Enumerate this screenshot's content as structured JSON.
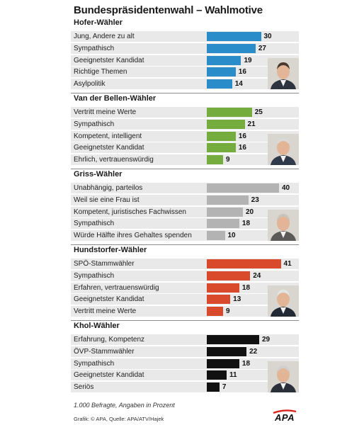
{
  "title": "Bundespräsidentenwahl – Wahlmotive",
  "chart_data": {
    "type": "bar",
    "orientation": "horizontal",
    "value_unit": "Prozent",
    "groups": [
      {
        "name": "Hofer-Wähler",
        "color": "#2a8cc8",
        "portrait": "hofer-portrait",
        "categories": [
          "Jung, Andere zu alt",
          "Sympathisch",
          "Geeignetster Kandidat",
          "Richtige Themen",
          "Asylpolitik"
        ],
        "values": [
          30,
          27,
          19,
          16,
          14
        ]
      },
      {
        "name": "Van der Bellen-Wähler",
        "color": "#74ac3e",
        "portrait": "van-der-bellen-portrait",
        "categories": [
          "Vertritt meine Werte",
          "Sympathisch",
          "Kompetent, intelligent",
          "Geeignetster Kandidat",
          "Ehrlich, vertrauenswürdig"
        ],
        "values": [
          25,
          21,
          16,
          16,
          9
        ]
      },
      {
        "name": "Griss-Wähler",
        "color": "#b3b3b3",
        "portrait": "griss-portrait",
        "categories": [
          "Unabhängig, parteilos",
          "Weil sie eine Frau ist",
          "Kompetent, juristisches Fachwissen",
          "Sympathisch",
          "Würde Hälfte ihres Gehaltes spenden"
        ],
        "values": [
          40,
          23,
          20,
          18,
          10
        ]
      },
      {
        "name": "Hundstorfer-Wähler",
        "color": "#d84a2b",
        "portrait": "hundstorfer-portrait",
        "categories": [
          "SPÖ-Stammwähler",
          "Sympathisch",
          "Erfahren, vertrauenswürdig",
          "Geeignetster Kandidat",
          "Vertritt meine Werte"
        ],
        "values": [
          41,
          24,
          18,
          13,
          9
        ]
      },
      {
        "name": "Khol-Wähler",
        "color": "#111111",
        "portrait": "khol-portrait",
        "categories": [
          "Erfahrung, Kompetenz",
          "ÖVP-Stammwähler",
          "Sympathisch",
          "Geeignetster Kandidat",
          "Seriös"
        ],
        "values": [
          29,
          22,
          18,
          11,
          7
        ]
      }
    ]
  },
  "footnote": "1.000 Befragte, Angaben in Prozent",
  "credit": "Grafik: © APA, Quelle: APA/ATV/Hajek",
  "logo_text": "APA"
}
